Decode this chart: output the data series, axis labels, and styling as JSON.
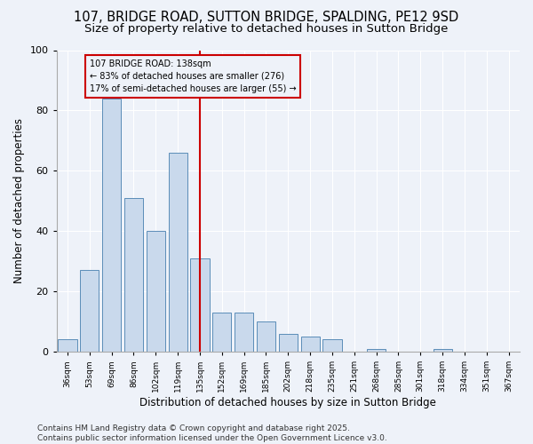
{
  "title1": "107, BRIDGE ROAD, SUTTON BRIDGE, SPALDING, PE12 9SD",
  "title2": "Size of property relative to detached houses in Sutton Bridge",
  "xlabel": "Distribution of detached houses by size in Sutton Bridge",
  "ylabel": "Number of detached properties",
  "categories": [
    "36sqm",
    "53sqm",
    "69sqm",
    "86sqm",
    "102sqm",
    "119sqm",
    "135sqm",
    "152sqm",
    "169sqm",
    "185sqm",
    "202sqm",
    "218sqm",
    "235sqm",
    "251sqm",
    "268sqm",
    "285sqm",
    "301sqm",
    "318sqm",
    "334sqm",
    "351sqm",
    "367sqm"
  ],
  "values": [
    4,
    27,
    84,
    51,
    40,
    66,
    31,
    13,
    13,
    10,
    6,
    5,
    4,
    0,
    1,
    0,
    0,
    1,
    0,
    0,
    0
  ],
  "bar_color": "#c9d9ec",
  "bar_edge_color": "#5b8db8",
  "vline_index": 6,
  "vline_color": "#cc0000",
  "annotation_text": "107 BRIDGE ROAD: 138sqm\n← 83% of detached houses are smaller (276)\n17% of semi-detached houses are larger (55) →",
  "annotation_box_color": "#cc0000",
  "ylim": [
    0,
    100
  ],
  "yticks": [
    0,
    20,
    40,
    60,
    80,
    100
  ],
  "background_color": "#eef2f9",
  "footer": "Contains HM Land Registry data © Crown copyright and database right 2025.\nContains public sector information licensed under the Open Government Licence v3.0.",
  "title_fontsize": 10.5,
  "subtitle_fontsize": 9.5,
  "xlabel_fontsize": 8.5,
  "ylabel_fontsize": 8.5,
  "footer_fontsize": 6.5
}
